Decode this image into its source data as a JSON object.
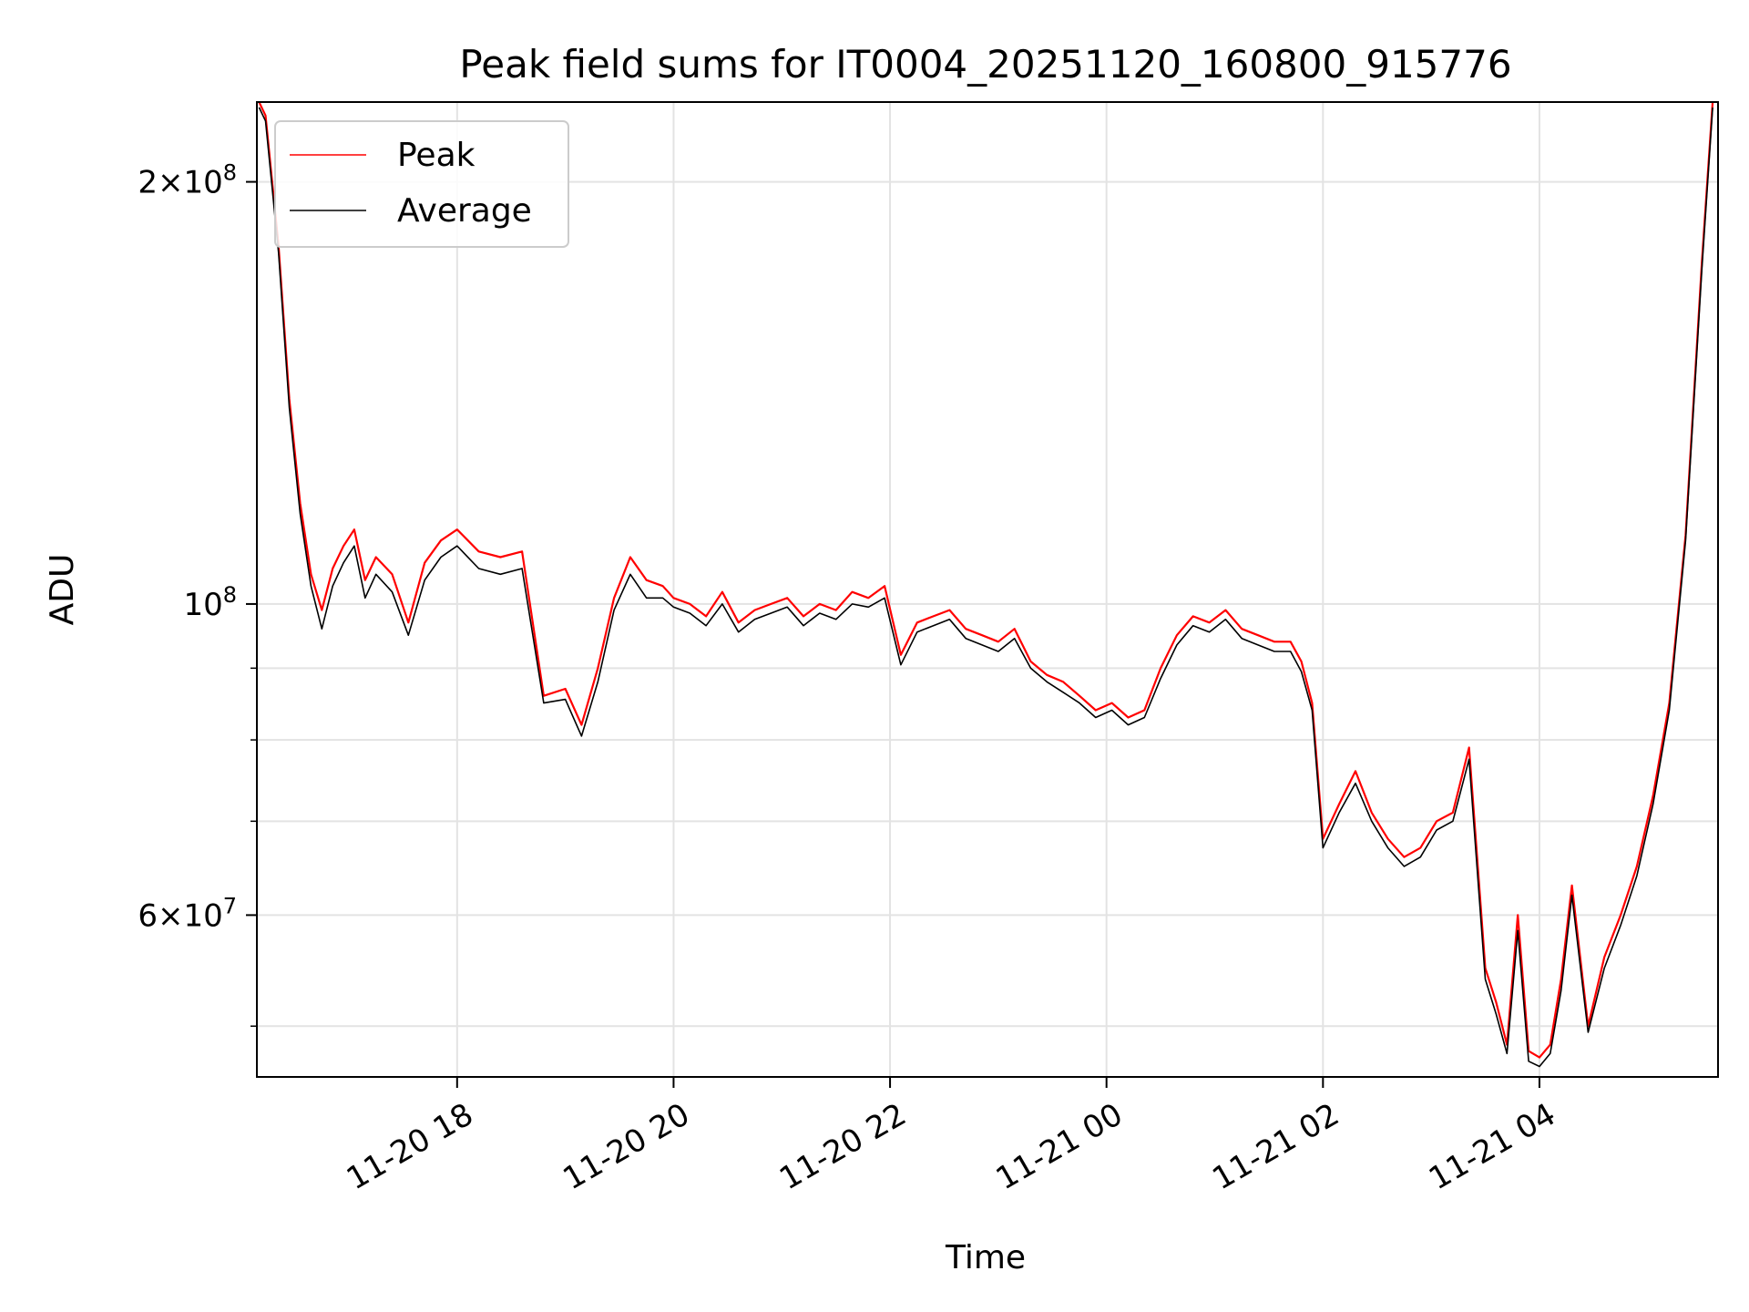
{
  "chart_data": {
    "type": "line",
    "title": "Peak field sums for IT0004_20251120_160800_915776",
    "xlabel": "Time",
    "ylabel": "ADU",
    "yscale": "log",
    "grid": true,
    "legend_position": "upper-left",
    "x_unit": "hours since 2025-11-20 16:00",
    "xlim": [
      0.15,
      13.65
    ],
    "ylim": [
      46000000,
      228000000
    ],
    "x_ticks": [
      {
        "value": 2,
        "label": "11-20 18"
      },
      {
        "value": 4,
        "label": "11-20 20"
      },
      {
        "value": 6,
        "label": "11-20 22"
      },
      {
        "value": 8,
        "label": "11-21 00"
      },
      {
        "value": 10,
        "label": "11-21 02"
      },
      {
        "value": 12,
        "label": "11-21 04"
      }
    ],
    "y_major_ticks": [
      {
        "value": 60000000,
        "base": "6",
        "exp": "7"
      },
      {
        "value": 100000000,
        "base": "",
        "exp": "8"
      },
      {
        "value": 200000000,
        "base": "2",
        "exp": "8"
      }
    ],
    "y_minor_ticks": [
      50000000,
      70000000,
      80000000,
      90000000
    ],
    "series": [
      {
        "name": "Peak",
        "color": "#ff0000",
        "x": [
          0.17,
          0.23,
          0.35,
          0.45,
          0.55,
          0.65,
          0.75,
          0.85,
          0.95,
          1.05,
          1.15,
          1.25,
          1.4,
          1.55,
          1.7,
          1.85,
          2.0,
          2.2,
          2.4,
          2.6,
          2.8,
          3.0,
          3.15,
          3.3,
          3.45,
          3.6,
          3.75,
          3.9,
          4.0,
          4.15,
          4.3,
          4.45,
          4.6,
          4.75,
          4.9,
          5.05,
          5.2,
          5.35,
          5.5,
          5.65,
          5.8,
          5.95,
          6.1,
          6.25,
          6.4,
          6.55,
          6.7,
          6.85,
          7.0,
          7.15,
          7.3,
          7.45,
          7.6,
          7.75,
          7.9,
          8.05,
          8.2,
          8.35,
          8.5,
          8.65,
          8.8,
          8.95,
          9.1,
          9.25,
          9.4,
          9.55,
          9.7,
          9.8,
          9.9,
          10.0,
          10.15,
          10.3,
          10.45,
          10.6,
          10.75,
          10.9,
          11.05,
          11.2,
          11.35,
          11.5,
          11.6,
          11.7,
          11.8,
          11.9,
          12.0,
          12.1,
          12.2,
          12.3,
          12.45,
          12.6,
          12.75,
          12.9,
          13.05,
          13.2,
          13.35,
          13.5,
          13.6
        ],
        "y": [
          228000000,
          223000000,
          180000000,
          140000000,
          118000000,
          105000000,
          99000000,
          106000000,
          110000000,
          113000000,
          104000000,
          108000000,
          105000000,
          97000000,
          107000000,
          111000000,
          113000000,
          109000000,
          108000000,
          109000000,
          86000000,
          87000000,
          82000000,
          90000000,
          101000000,
          108000000,
          104000000,
          103000000,
          101000000,
          100000000,
          98000000,
          102000000,
          97000000,
          99000000,
          100000000,
          101000000,
          98000000,
          100000000,
          99000000,
          102000000,
          101000000,
          103000000,
          92000000,
          97000000,
          98000000,
          99000000,
          96000000,
          95000000,
          94000000,
          96000000,
          91000000,
          89000000,
          88000000,
          86000000,
          84000000,
          85000000,
          83000000,
          84000000,
          90000000,
          95000000,
          98000000,
          97000000,
          99000000,
          96000000,
          95000000,
          94000000,
          94000000,
          91000000,
          85000000,
          68000000,
          72000000,
          76000000,
          71000000,
          68000000,
          66000000,
          67000000,
          70000000,
          71000000,
          79000000,
          55000000,
          52000000,
          48500000,
          60000000,
          48000000,
          47500000,
          48500000,
          54000000,
          63000000,
          50000000,
          56000000,
          60000000,
          65000000,
          73000000,
          85000000,
          112000000,
          175000000,
          228000000
        ]
      },
      {
        "name": "Average",
        "color": "#000000",
        "x": [
          0.17,
          0.23,
          0.35,
          0.45,
          0.55,
          0.65,
          0.75,
          0.85,
          0.95,
          1.05,
          1.15,
          1.25,
          1.4,
          1.55,
          1.7,
          1.85,
          2.0,
          2.2,
          2.4,
          2.6,
          2.8,
          3.0,
          3.15,
          3.3,
          3.45,
          3.6,
          3.75,
          3.9,
          4.0,
          4.15,
          4.3,
          4.45,
          4.6,
          4.75,
          4.9,
          5.05,
          5.2,
          5.35,
          5.5,
          5.65,
          5.8,
          5.95,
          6.1,
          6.25,
          6.4,
          6.55,
          6.7,
          6.85,
          7.0,
          7.15,
          7.3,
          7.45,
          7.6,
          7.75,
          7.9,
          8.05,
          8.2,
          8.35,
          8.5,
          8.65,
          8.8,
          8.95,
          9.1,
          9.25,
          9.4,
          9.55,
          9.7,
          9.8,
          9.9,
          10.0,
          10.15,
          10.3,
          10.45,
          10.6,
          10.75,
          10.9,
          11.05,
          11.2,
          11.35,
          11.5,
          11.6,
          11.7,
          11.8,
          11.9,
          12.0,
          12.1,
          12.2,
          12.3,
          12.45,
          12.6,
          12.75,
          12.9,
          13.05,
          13.2,
          13.35,
          13.5,
          13.6
        ],
        "y": [
          226000000,
          221000000,
          178000000,
          138000000,
          116000000,
          103000000,
          96000000,
          103000000,
          107000000,
          110000000,
          101000000,
          105000000,
          102000000,
          95000000,
          104000000,
          108000000,
          110000000,
          106000000,
          105000000,
          106000000,
          85000000,
          85500000,
          80500000,
          88000000,
          99000000,
          105000000,
          101000000,
          101000000,
          99500000,
          98500000,
          96500000,
          100000000,
          95500000,
          97500000,
          98500000,
          99500000,
          96500000,
          98500000,
          97500000,
          100000000,
          99500000,
          101000000,
          90500000,
          95500000,
          96500000,
          97500000,
          94500000,
          93500000,
          92500000,
          94500000,
          90000000,
          88000000,
          86500000,
          85000000,
          83000000,
          84000000,
          82000000,
          83000000,
          88500000,
          93500000,
          96500000,
          95500000,
          97500000,
          94500000,
          93500000,
          92500000,
          92500000,
          89500000,
          84000000,
          67000000,
          71000000,
          74500000,
          70000000,
          67000000,
          65000000,
          66000000,
          69000000,
          70000000,
          77500000,
          54000000,
          51000000,
          47800000,
          58500000,
          47200000,
          46800000,
          47800000,
          53000000,
          62000000,
          49500000,
          55000000,
          59000000,
          64000000,
          72000000,
          84000000,
          111000000,
          173000000,
          226000000
        ]
      }
    ]
  }
}
